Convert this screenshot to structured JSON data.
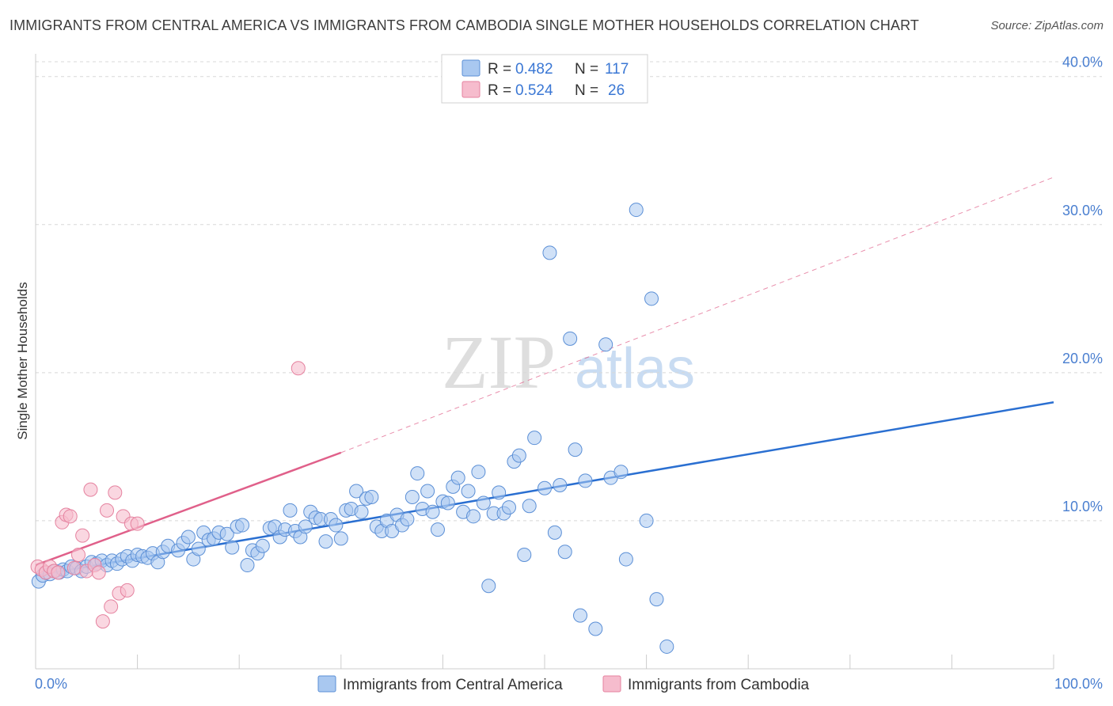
{
  "header": {
    "title": "IMMIGRANTS FROM CENTRAL AMERICA VS IMMIGRANTS FROM CAMBODIA SINGLE MOTHER HOUSEHOLDS CORRELATION CHART",
    "source": "Source: ZipAtlas.com"
  },
  "watermark": {
    "zip": "ZIP",
    "atlas": "atlas"
  },
  "legend": {
    "rows": [
      {
        "r_label": "R =",
        "r_value": "0.482",
        "n_label": "N =",
        "n_value": "117"
      },
      {
        "r_label": "R =",
        "r_value": "0.524",
        "n_label": "N =",
        "n_value": "26"
      }
    ]
  },
  "bottom_legend": [
    "Immigrants from Central America",
    "Immigrants from Cambodia"
  ],
  "colors": {
    "blue_fill": "#a9c8f0",
    "blue_stroke": "#5b8fd6",
    "blue_line": "#2a6fd1",
    "pink_fill": "#f6bccd",
    "pink_stroke": "#e5829f",
    "pink_line": "#e0608a",
    "grid": "#d8d8d8",
    "tick_text": "#4a7fd0"
  },
  "chart_data": {
    "type": "scatter",
    "title": "IMMIGRANTS FROM CENTRAL AMERICA VS IMMIGRANTS FROM CAMBODIA SINGLE MOTHER HOUSEHOLDS CORRELATION CHART",
    "xlabel": "",
    "ylabel": "Single Mother Households",
    "xlim": [
      0,
      100
    ],
    "ylim": [
      0,
      41
    ],
    "x_ticks": [
      "0.0%",
      "100.0%"
    ],
    "y_ticks": [
      "10.0%",
      "20.0%",
      "30.0%",
      "40.0%"
    ],
    "y_tick_values": [
      10,
      20,
      30,
      40
    ],
    "grid": true,
    "legend_position": "top-center",
    "series": [
      {
        "name": "Immigrants from Central America",
        "color": "#a9c8f0",
        "R": 0.482,
        "N": 117,
        "trend": {
          "x": [
            0,
            100
          ],
          "y": [
            6.3,
            18.0
          ],
          "style": "solid"
        },
        "points": [
          [
            0.3,
            5.9
          ],
          [
            0.7,
            6.3
          ],
          [
            1.0,
            6.5
          ],
          [
            1.4,
            6.4
          ],
          [
            1.9,
            6.6
          ],
          [
            2.3,
            6.5
          ],
          [
            2.7,
            6.7
          ],
          [
            3.1,
            6.6
          ],
          [
            3.5,
            6.9
          ],
          [
            4.0,
            6.8
          ],
          [
            4.5,
            6.6
          ],
          [
            5.0,
            6.9
          ],
          [
            5.5,
            7.2
          ],
          [
            6.0,
            7.1
          ],
          [
            6.5,
            7.3
          ],
          [
            7.0,
            7.0
          ],
          [
            7.5,
            7.3
          ],
          [
            8.0,
            7.1
          ],
          [
            8.5,
            7.4
          ],
          [
            9.0,
            7.6
          ],
          [
            9.5,
            7.3
          ],
          [
            10.0,
            7.7
          ],
          [
            10.5,
            7.6
          ],
          [
            11.0,
            7.5
          ],
          [
            11.5,
            7.8
          ],
          [
            12.0,
            7.2
          ],
          [
            12.5,
            7.9
          ],
          [
            13.0,
            8.3
          ],
          [
            14.0,
            8.0
          ],
          [
            14.5,
            8.5
          ],
          [
            15.0,
            8.9
          ],
          [
            15.5,
            7.4
          ],
          [
            16.0,
            8.1
          ],
          [
            16.5,
            9.2
          ],
          [
            17.0,
            8.7
          ],
          [
            17.5,
            8.8
          ],
          [
            18.0,
            9.2
          ],
          [
            18.8,
            9.1
          ],
          [
            19.3,
            8.2
          ],
          [
            19.8,
            9.6
          ],
          [
            20.3,
            9.7
          ],
          [
            20.8,
            7.0
          ],
          [
            21.3,
            8.0
          ],
          [
            21.8,
            7.8
          ],
          [
            22.3,
            8.3
          ],
          [
            23.0,
            9.5
          ],
          [
            23.5,
            9.6
          ],
          [
            24.0,
            8.9
          ],
          [
            24.5,
            9.4
          ],
          [
            25.0,
            10.7
          ],
          [
            25.5,
            9.3
          ],
          [
            26.0,
            8.9
          ],
          [
            26.5,
            9.6
          ],
          [
            27.0,
            10.6
          ],
          [
            27.5,
            10.2
          ],
          [
            28.0,
            10.1
          ],
          [
            28.5,
            8.6
          ],
          [
            29.0,
            10.1
          ],
          [
            29.5,
            9.7
          ],
          [
            30.0,
            8.8
          ],
          [
            30.5,
            10.7
          ],
          [
            31.0,
            10.8
          ],
          [
            31.5,
            12.0
          ],
          [
            32.0,
            10.6
          ],
          [
            32.5,
            11.5
          ],
          [
            33.0,
            11.6
          ],
          [
            33.5,
            9.6
          ],
          [
            34.0,
            9.3
          ],
          [
            34.5,
            10.0
          ],
          [
            35.0,
            9.3
          ],
          [
            35.5,
            10.4
          ],
          [
            36.0,
            9.7
          ],
          [
            36.5,
            10.1
          ],
          [
            37.0,
            11.6
          ],
          [
            37.5,
            13.2
          ],
          [
            38.0,
            10.8
          ],
          [
            38.5,
            12.0
          ],
          [
            39.0,
            10.6
          ],
          [
            39.5,
            9.4
          ],
          [
            40.0,
            11.3
          ],
          [
            40.5,
            11.2
          ],
          [
            41.0,
            12.3
          ],
          [
            41.5,
            12.9
          ],
          [
            42.0,
            10.6
          ],
          [
            42.5,
            12.0
          ],
          [
            43.0,
            10.3
          ],
          [
            43.5,
            13.3
          ],
          [
            44.0,
            11.2
          ],
          [
            44.5,
            5.6
          ],
          [
            45.0,
            10.5
          ],
          [
            45.5,
            11.9
          ],
          [
            46.0,
            10.5
          ],
          [
            46.5,
            10.9
          ],
          [
            47.0,
            14.0
          ],
          [
            47.5,
            14.4
          ],
          [
            48.0,
            7.7
          ],
          [
            48.5,
            11.0
          ],
          [
            49.0,
            15.6
          ],
          [
            50.0,
            12.2
          ],
          [
            50.5,
            28.1
          ],
          [
            51.0,
            9.2
          ],
          [
            51.5,
            12.4
          ],
          [
            52.0,
            7.9
          ],
          [
            52.5,
            22.3
          ],
          [
            53.0,
            14.8
          ],
          [
            53.5,
            3.6
          ],
          [
            54.0,
            12.7
          ],
          [
            55.0,
            2.7
          ],
          [
            56.0,
            21.9
          ],
          [
            56.5,
            12.9
          ],
          [
            57.5,
            13.3
          ],
          [
            58.0,
            7.4
          ],
          [
            59.0,
            31.0
          ],
          [
            60.0,
            10.0
          ],
          [
            60.5,
            25.0
          ],
          [
            61.0,
            4.7
          ],
          [
            62.0,
            1.5
          ]
        ]
      },
      {
        "name": "Immigrants from Cambodia",
        "color": "#f6bccd",
        "R": 0.524,
        "N": 26,
        "trend": {
          "x": [
            0,
            30
          ],
          "y": [
            7.0,
            14.6
          ],
          "style": "solid",
          "extended": {
            "x": [
              30,
              100
            ],
            "y": [
              14.6,
              33.2
            ],
            "style": "dashed"
          }
        },
        "points": [
          [
            0.2,
            6.9
          ],
          [
            0.6,
            6.7
          ],
          [
            1.0,
            6.5
          ],
          [
            1.4,
            6.9
          ],
          [
            1.8,
            6.6
          ],
          [
            2.2,
            6.5
          ],
          [
            2.6,
            9.9
          ],
          [
            3.0,
            10.4
          ],
          [
            3.4,
            10.3
          ],
          [
            3.8,
            6.8
          ],
          [
            4.2,
            7.7
          ],
          [
            4.6,
            9.0
          ],
          [
            5.0,
            6.6
          ],
          [
            5.4,
            12.1
          ],
          [
            5.8,
            7.0
          ],
          [
            6.2,
            6.5
          ],
          [
            6.6,
            3.2
          ],
          [
            7.0,
            10.7
          ],
          [
            7.4,
            4.2
          ],
          [
            7.8,
            11.9
          ],
          [
            8.2,
            5.1
          ],
          [
            8.6,
            10.3
          ],
          [
            9.0,
            5.3
          ],
          [
            9.4,
            9.8
          ],
          [
            10.0,
            9.8
          ],
          [
            25.8,
            20.3
          ]
        ]
      }
    ]
  }
}
